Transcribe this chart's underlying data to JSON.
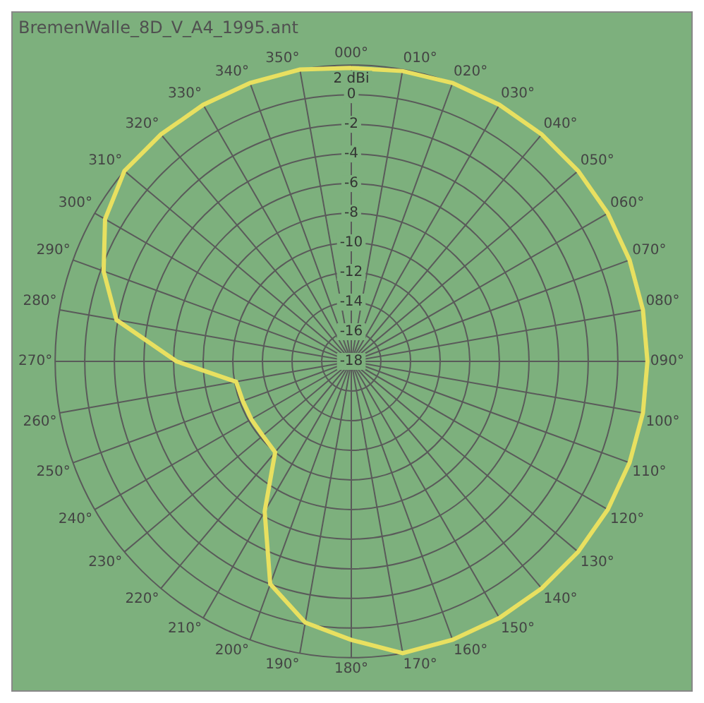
{
  "chart_data": {
    "type": "radar",
    "title": "BremenWalle_8D_V_A4_1995.ant",
    "categories": [
      "000°",
      "010°",
      "020°",
      "030°",
      "040°",
      "050°",
      "060°",
      "070°",
      "080°",
      "090°",
      "100°",
      "110°",
      "120°",
      "130°",
      "140°",
      "150°",
      "160°",
      "170°",
      "180°",
      "190°",
      "200°",
      "210°",
      "220°",
      "230°",
      "240°",
      "250°",
      "260°",
      "270°",
      "280°",
      "290°",
      "300°",
      "310°",
      "320°",
      "330°",
      "340°",
      "350°"
    ],
    "series": [
      {
        "color": "#e8e060",
        "values": [
          1.8,
          1.9,
          2,
          2,
          2,
          2,
          2,
          2,
          2,
          2,
          2,
          2,
          2,
          2,
          2,
          2,
          2,
          2,
          0.8,
          -0.1,
          -2,
          -6.3,
          -10,
          -10.2,
          -10.2,
          -10.2,
          -10.1,
          -6.2,
          -1.9,
          -0.2,
          1.2,
          2,
          2,
          2,
          2,
          2
        ]
      }
    ],
    "ylim": [
      -18,
      2
    ],
    "yticks": [
      -18,
      -16,
      -14,
      -12,
      -10,
      -8,
      -6,
      -4,
      -2,
      0,
      {
        "value": 2,
        "label": "2 dBi"
      }
    ],
    "grid": true,
    "marker": "none",
    "legend": false
  }
}
